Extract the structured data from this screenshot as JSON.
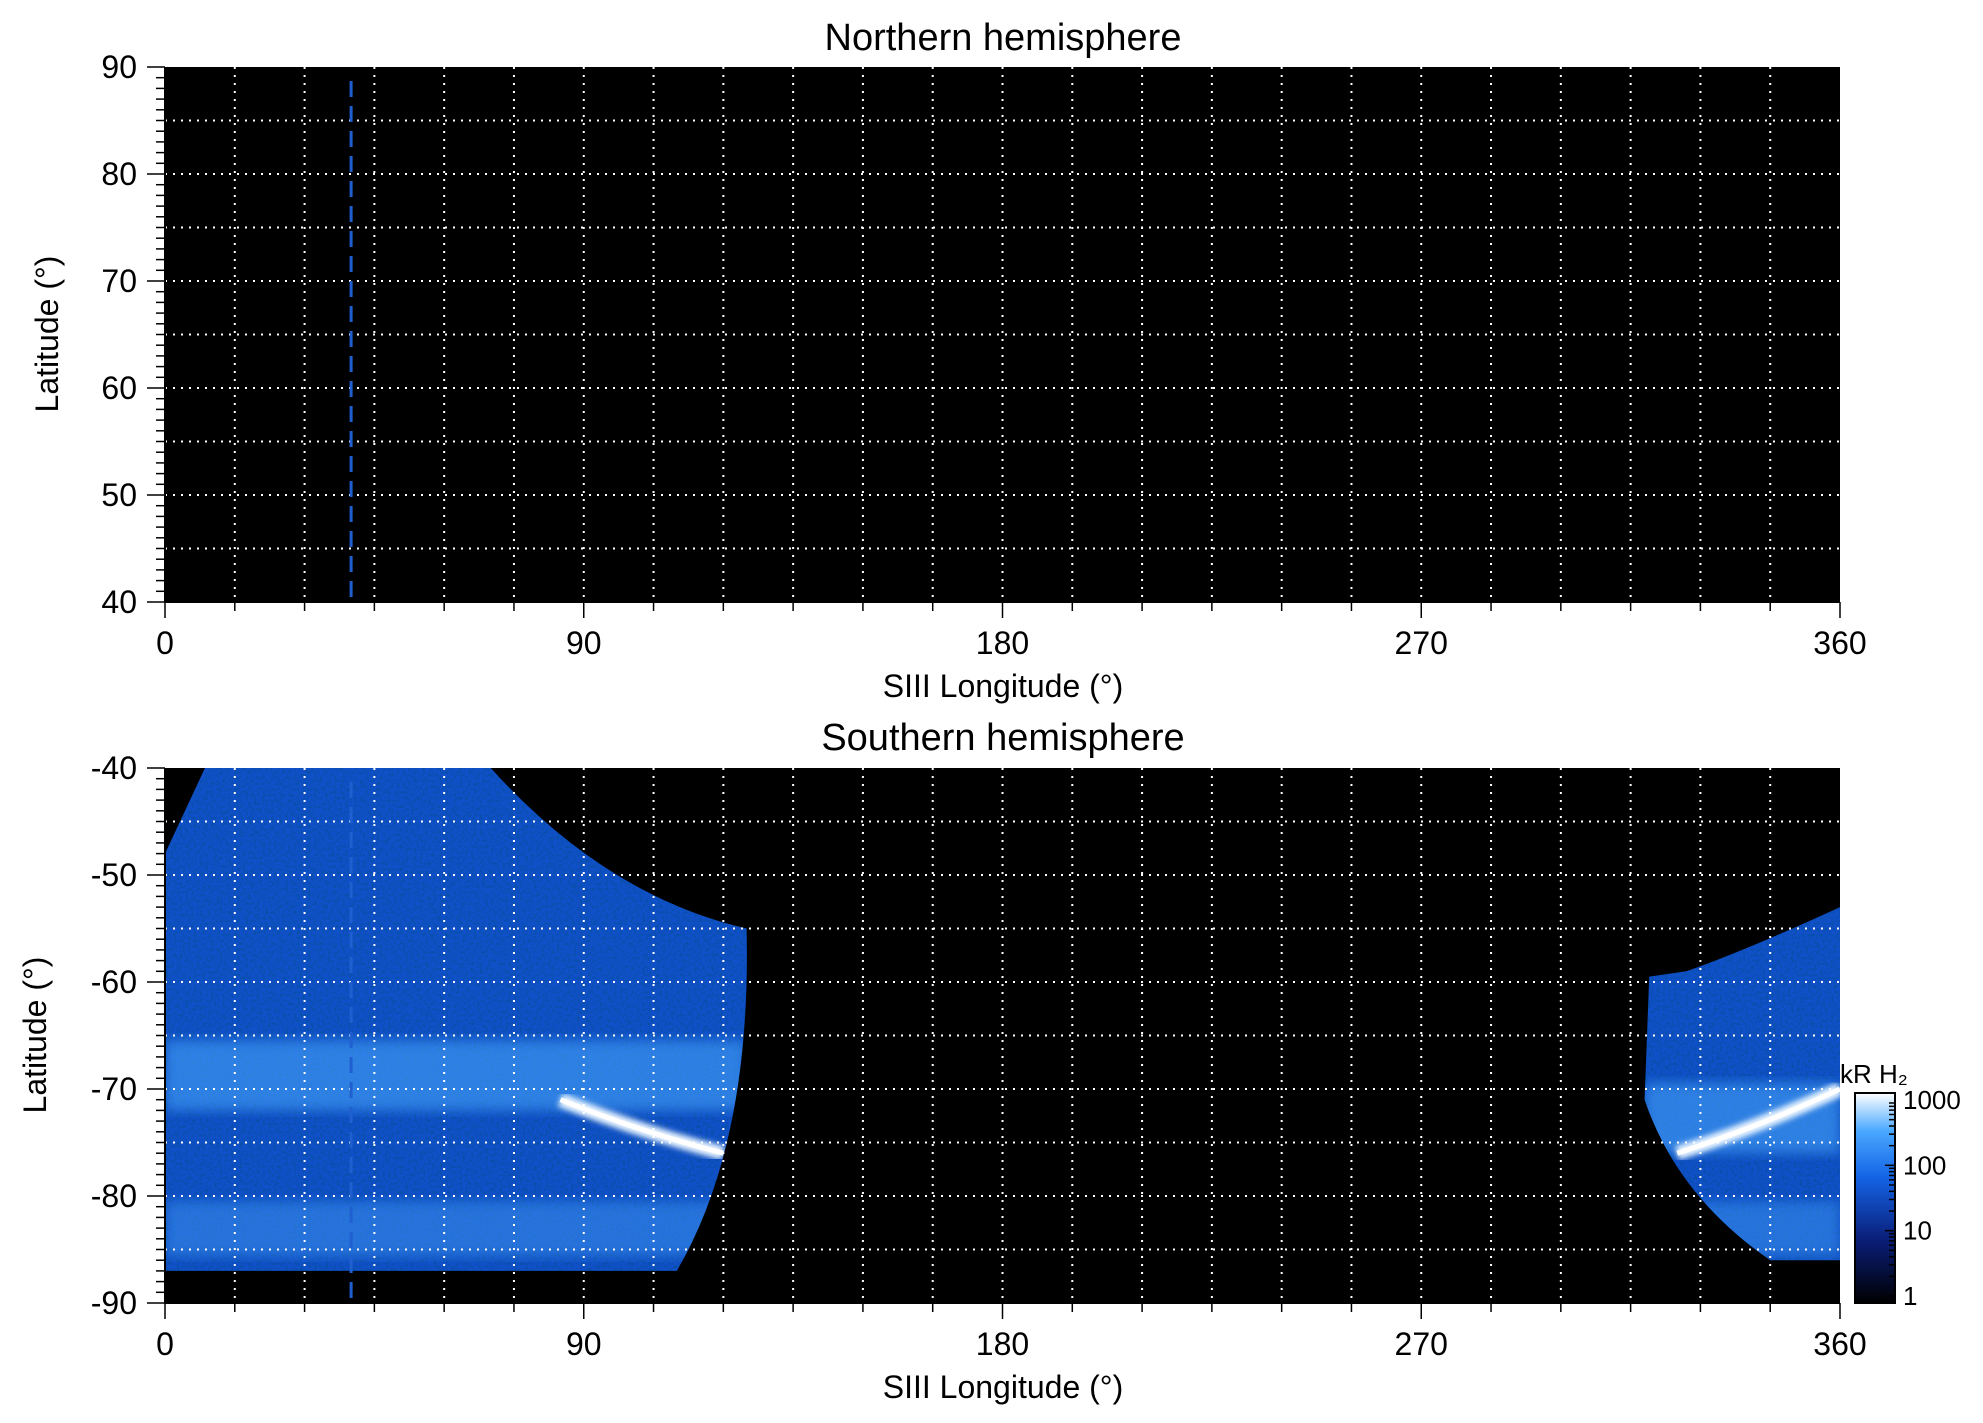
{
  "chart_data": [
    {
      "type": "heatmap",
      "title": "Northern hemisphere",
      "xlabel": "SIII Longitude (°)",
      "ylabel": "Latitude (°)",
      "xlim": [
        0,
        360
      ],
      "ylim": [
        40,
        90
      ],
      "x_ticks": [
        0,
        90,
        180,
        270,
        360
      ],
      "y_ticks": [
        40,
        50,
        60,
        70,
        80,
        90
      ],
      "grid": true,
      "grid_x_step": 15,
      "grid_y_step": 5,
      "background": "#000000",
      "marker_longitude": 40,
      "marker_color": "#1f5fd0",
      "emission_regions": []
    },
    {
      "type": "heatmap",
      "title": "Southern hemisphere",
      "xlabel": "SIII Longitude (°)",
      "ylabel": "Latitude (°)",
      "xlim": [
        0,
        360
      ],
      "ylim": [
        -90,
        -40
      ],
      "x_ticks": [
        0,
        90,
        180,
        270,
        360
      ],
      "y_ticks": [
        -40,
        -50,
        -60,
        -70,
        -80,
        -90
      ],
      "grid": true,
      "grid_x_step": 15,
      "grid_y_step": 5,
      "background": "#000000",
      "marker_longitude": 40,
      "marker_color": "#1f5fd0",
      "emission_regions": [
        {
          "lon_range": [
            0,
            125
          ],
          "lat_range": [
            -87,
            -40
          ],
          "main_oval_lat": -69,
          "bright_arc_lon": [
            85,
            120
          ],
          "bright_arc_lat": [
            -71,
            -76
          ]
        },
        {
          "lon_range": [
            318,
            360
          ],
          "lat_range": [
            -86,
            -53
          ],
          "main_oval_lat": -73,
          "bright_arc_lon": [
            325,
            360
          ],
          "bright_arc_lat": [
            -76,
            -70
          ]
        }
      ],
      "colorbar": {
        "label": "kR H₂",
        "scale": "log",
        "ticks": [
          1,
          10,
          100,
          1000
        ],
        "tick_labels": [
          "1",
          "10",
          "100",
          "1000"
        ],
        "colors": [
          "#000000",
          "#0a1e78",
          "#1464e6",
          "#4aa8ff",
          "#ffffff"
        ]
      }
    }
  ]
}
